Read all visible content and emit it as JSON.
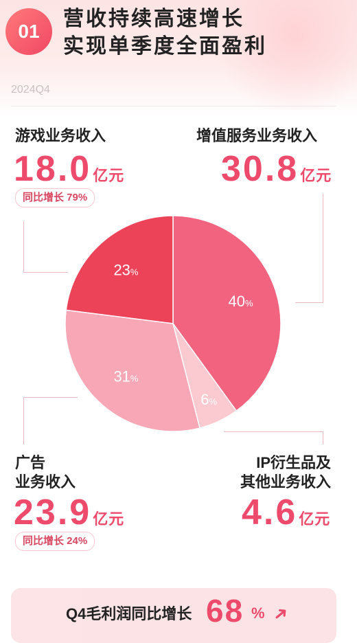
{
  "header": {
    "badge": "01",
    "title_line1": "营收持续高速增长",
    "title_line2": "实现单季度全面盈利",
    "period": "2024Q4"
  },
  "segments": {
    "game": {
      "label": "游戏业务收入",
      "value": "18.0",
      "unit": "亿元",
      "growth": "同比增长 79%"
    },
    "vas": {
      "label": "增值服务业务收入",
      "value": "30.8",
      "unit": "亿元"
    },
    "ads": {
      "label_line1": "广告",
      "label_line2": "业务收入",
      "value": "23.9",
      "unit": "亿元",
      "growth": "同比增长 24%"
    },
    "ip": {
      "label_line1": "IP衍生品及",
      "label_line2": "其他业务收入",
      "value": "4.6",
      "unit": "亿元"
    }
  },
  "chart_data": {
    "type": "pie",
    "slices": [
      {
        "label": "增值服务业务收入",
        "value": 40,
        "color": "#f2637f"
      },
      {
        "label": "IP衍生品及其他业务收入",
        "value": 6,
        "color": "#fbc9d0"
      },
      {
        "label": "广告业务收入",
        "value": 31,
        "color": "#f8a7b6"
      },
      {
        "label": "游戏业务收入",
        "value": 23,
        "color": "#ec4359"
      }
    ],
    "unit": "%"
  },
  "footer": {
    "text": "Q4毛利润同比增长",
    "value": "68",
    "unit": "%",
    "arrow_icon": "up-arrow-icon"
  }
}
